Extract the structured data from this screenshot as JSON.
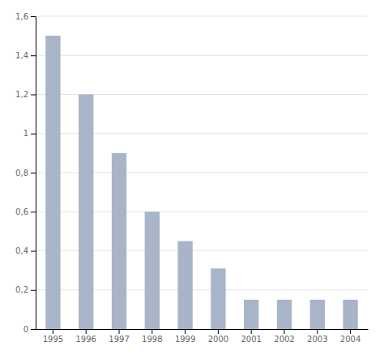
{
  "chart_data": {
    "type": "bar",
    "categories": [
      "1995",
      "1996",
      "1997",
      "1998",
      "1999",
      "2000",
      "2001",
      "2002",
      "2003",
      "2004"
    ],
    "values": [
      1.5,
      1.2,
      0.9,
      0.6,
      0.45,
      0.31,
      0.15,
      0.15,
      0.15,
      0.15
    ],
    "color": "#a8b5c8",
    "ylim": [
      0,
      1.6
    ],
    "yticks": [
      0,
      {
        "value": 0.2,
        "label": "0,2"
      },
      {
        "value": 0.4,
        "label": "0,4"
      },
      {
        "value": 0.6,
        "label": "0,6"
      },
      {
        "value": 0.8,
        "label": "0,8"
      },
      1,
      {
        "value": 1.2,
        "label": "1,2"
      },
      {
        "value": 1.4,
        "label": "1,4"
      },
      {
        "value": 1.6,
        "label": "1,6"
      }
    ],
    "grid": true
  }
}
